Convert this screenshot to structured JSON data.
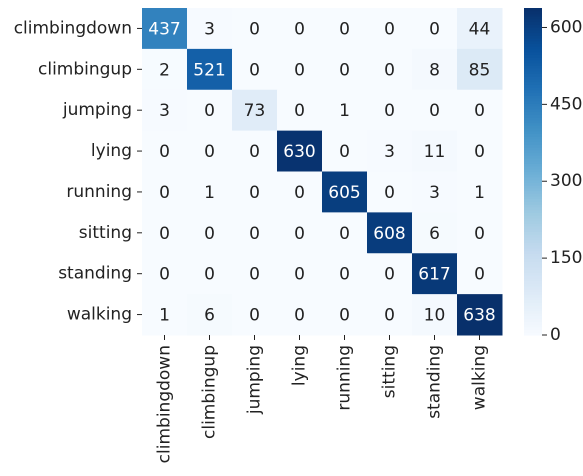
{
  "chart_data": {
    "type": "heatmap",
    "x_categories": [
      "climbingdown",
      "climbingup",
      "jumping",
      "lying",
      "running",
      "sitting",
      "standing",
      "walking"
    ],
    "y_categories": [
      "climbingdown",
      "climbingup",
      "jumping",
      "lying",
      "running",
      "sitting",
      "standing",
      "walking"
    ],
    "values": [
      [
        437,
        3,
        0,
        0,
        0,
        0,
        0,
        44
      ],
      [
        2,
        521,
        0,
        0,
        0,
        0,
        8,
        85
      ],
      [
        3,
        0,
        73,
        0,
        1,
        0,
        0,
        0
      ],
      [
        0,
        0,
        0,
        630,
        0,
        3,
        11,
        0
      ],
      [
        0,
        1,
        0,
        0,
        605,
        0,
        3,
        1
      ],
      [
        0,
        0,
        0,
        0,
        0,
        608,
        6,
        0
      ],
      [
        0,
        0,
        0,
        0,
        0,
        0,
        617,
        0
      ],
      [
        1,
        6,
        0,
        0,
        0,
        0,
        10,
        638
      ]
    ],
    "colormap": "Blues",
    "zlim": [
      0,
      638
    ],
    "zticks": [
      0,
      150,
      300,
      450,
      600
    ]
  }
}
